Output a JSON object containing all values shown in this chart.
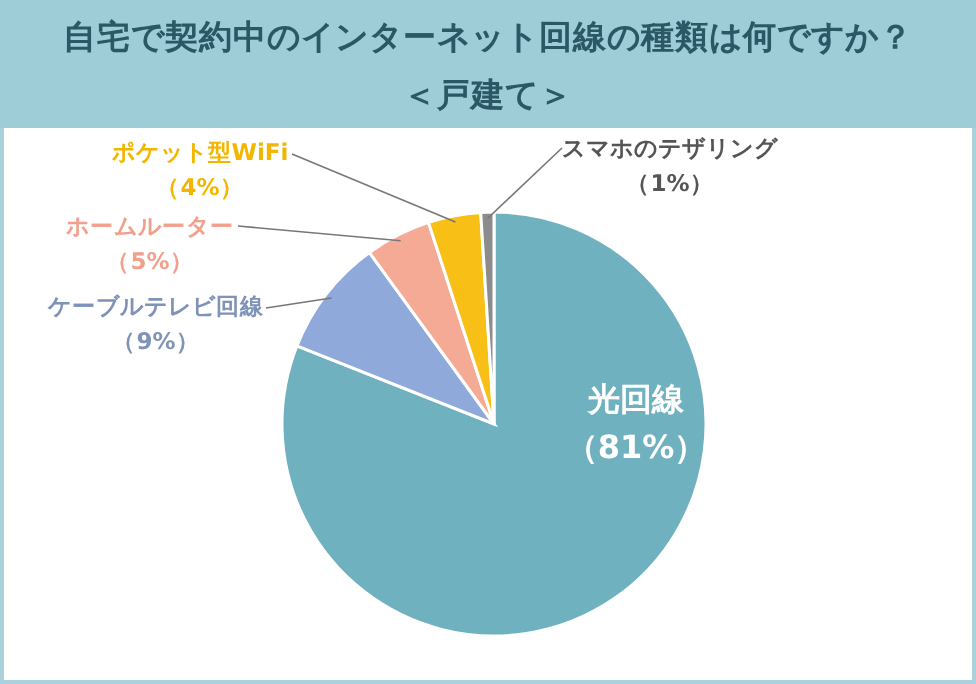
{
  "chart_data": {
    "type": "pie",
    "title": "自宅で契約中のインターネット回線の種類は何ですか？",
    "subtitle": "＜戸建て＞",
    "categories": [
      "光回線",
      "ケーブルテレビ回線",
      "ホームルーター",
      "ポケット型WiFi",
      "スマホのテザリング"
    ],
    "values": [
      81,
      9,
      5,
      4,
      1
    ],
    "value_labels": [
      "（81%）",
      "（9%）",
      "（5%）",
      "（4%）",
      "（1%）"
    ],
    "colors": [
      "#70b1bf",
      "#8fa9da",
      "#f5aa96",
      "#f8bf17",
      "#8c8c8c"
    ]
  }
}
